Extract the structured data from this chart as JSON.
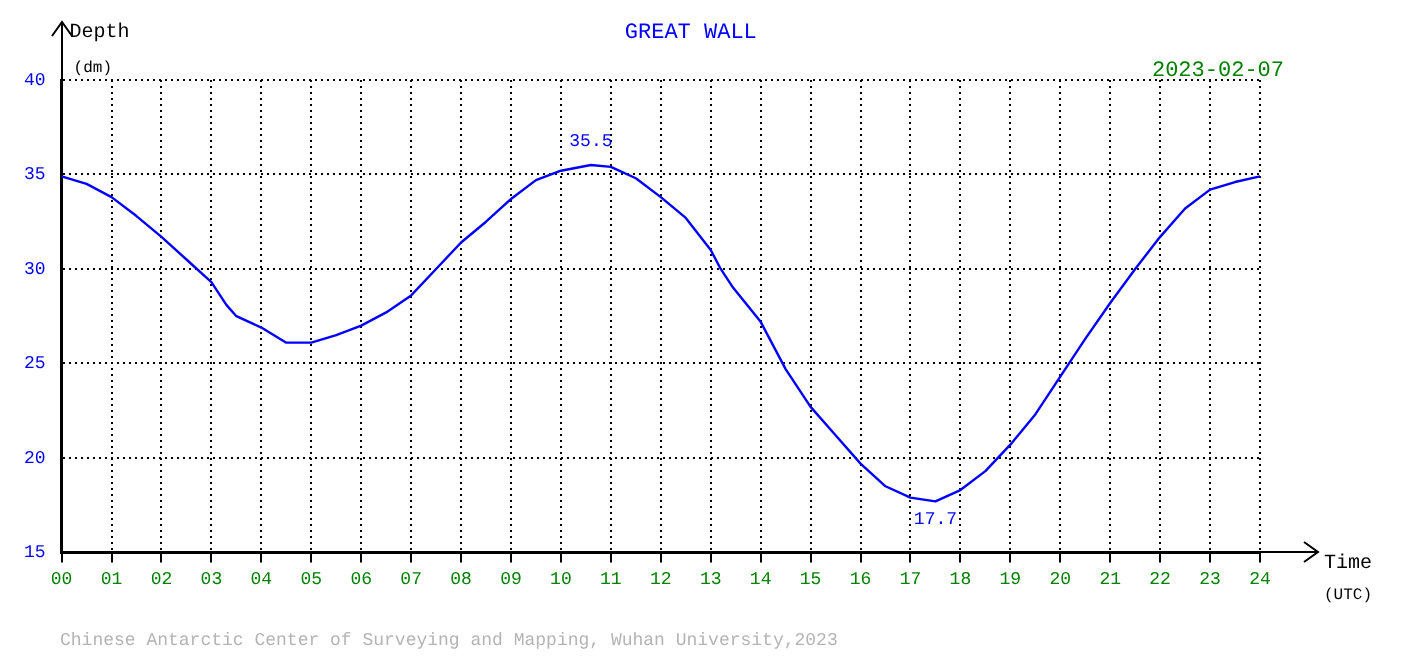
{
  "chart_data": {
    "type": "line",
    "title": "GREAT WALL",
    "ylabel": "Depth (dm)",
    "xlabel": "Time (UTC)",
    "x": [
      0,
      0.5,
      1,
      1.5,
      2,
      2.5,
      3,
      3.3,
      3.5,
      4,
      4.5,
      5,
      5.5,
      6,
      6.5,
      7,
      7.5,
      8,
      8.5,
      9,
      9.5,
      10,
      10.6,
      11,
      11.5,
      12,
      12.5,
      13,
      13.2,
      13.45,
      14,
      14.5,
      15,
      15.5,
      16,
      16.5,
      17,
      17.5,
      18,
      18.5,
      19,
      19.5,
      20,
      20.5,
      21,
      21.5,
      22,
      22.5,
      23,
      23.5,
      24
    ],
    "series": [
      {
        "color": "#0000ff",
        "values": [
          34.9,
          34.5,
          33.8,
          32.8,
          31.7,
          30.5,
          29.3,
          28.1,
          27.5,
          26.9,
          26.1,
          26.1,
          26.5,
          27.0,
          27.7,
          28.6,
          30.0,
          31.4,
          32.5,
          33.7,
          34.7,
          35.2,
          35.5,
          35.4,
          34.8,
          33.8,
          32.7,
          31.0,
          30.0,
          29.0,
          27.2,
          24.7,
          22.7,
          21.2,
          19.7,
          18.5,
          17.9,
          17.7,
          18.3,
          19.3,
          20.7,
          22.3,
          24.3,
          26.3,
          28.2,
          30.0,
          31.7,
          33.2,
          34.2,
          34.6,
          34.9
        ]
      }
    ],
    "xlim": [
      0,
      24
    ],
    "xticks": [
      {
        "value": 0,
        "label": "00"
      },
      {
        "value": 1,
        "label": "01"
      },
      {
        "value": 2,
        "label": "02"
      },
      {
        "value": 3,
        "label": "03"
      },
      {
        "value": 4,
        "label": "04"
      },
      {
        "value": 5,
        "label": "05"
      },
      {
        "value": 6,
        "label": "06"
      },
      {
        "value": 7,
        "label": "07"
      },
      {
        "value": 8,
        "label": "08"
      },
      {
        "value": 9,
        "label": "09"
      },
      {
        "value": 10,
        "label": "10"
      },
      {
        "value": 11,
        "label": "11"
      },
      {
        "value": 12,
        "label": "12"
      },
      {
        "value": 13,
        "label": "13"
      },
      {
        "value": 14,
        "label": "14"
      },
      {
        "value": 15,
        "label": "15"
      },
      {
        "value": 16,
        "label": "16"
      },
      {
        "value": 17,
        "label": "17"
      },
      {
        "value": 18,
        "label": "18"
      },
      {
        "value": 19,
        "label": "19"
      },
      {
        "value": 20,
        "label": "20"
      },
      {
        "value": 21,
        "label": "21"
      },
      {
        "value": 22,
        "label": "22"
      },
      {
        "value": 23,
        "label": "23"
      },
      {
        "value": 24,
        "label": "24"
      }
    ],
    "ylim": [
      15,
      40
    ],
    "yticks": [
      15,
      20,
      25,
      30,
      35,
      40
    ],
    "grid": true,
    "legend": false,
    "marker": "none",
    "line_style": "solid",
    "annotations": [
      "2023-02-07",
      "Chinese Antarctic Center of Surveying and Mapping, Wuhan University,2023",
      {
        "text": "35.5",
        "x": 10.6,
        "y": 35.5
      },
      {
        "text": "17.7",
        "x": 17.5,
        "y": 17.7
      }
    ]
  }
}
